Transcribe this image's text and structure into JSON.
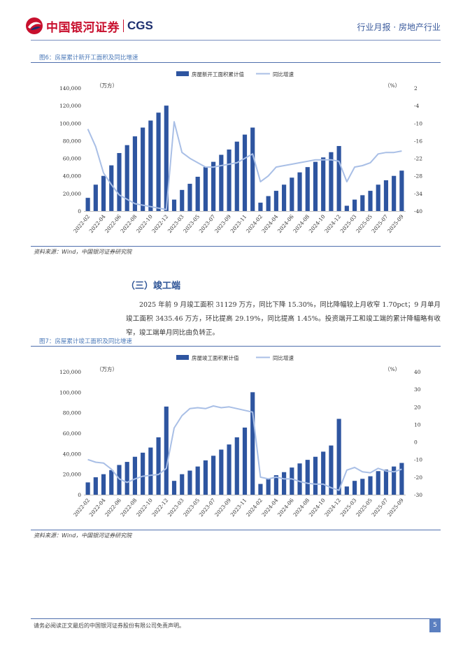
{
  "header": {
    "logo_cn": "中国银河证券",
    "logo_en": "CGS",
    "right_text": "行业月报 · 房地产行业"
  },
  "figures": [
    {
      "caption": "图6：房屋累计新开工面积及同比增速",
      "source": "资料来源：Wind，中国银河证券研究院"
    },
    {
      "caption": "图7：房屋累计竣工面积及同比增速",
      "source": "资料来源：Wind，中国银河证券研究院"
    }
  ],
  "section": {
    "title": "（三）竣工端",
    "paragraph": "2025 年前 9 月竣工面积 31129 万方，同比下降 15.30%，同比降幅较上月收窄 1.70pct；9 月单月竣工面积 3435.46 万方，环比提高 29.19%，同比提高 1.45%。投资端开工和竣工端的累计降幅略有收窄，竣工端单月同比由负转正。"
  },
  "footer": {
    "disclaimer": "请务必阅读正文最后的中国银河证券股份有限公司免责声明。",
    "page_number": "5"
  },
  "colors": {
    "bar": "#2e55a0",
    "line": "#a9bfe6",
    "accent": "#4a78b8"
  },
  "chart_data": [
    {
      "type": "bar+line",
      "title": "房屋累计新开工面积及同比增速",
      "legend": [
        "房屋新开工面积累计值",
        "同比增速"
      ],
      "left_unit": "（万方）",
      "right_unit": "（%）",
      "left_ticks": [
        "140,000",
        "120,000",
        "100,000",
        "80,000",
        "60,000",
        "40,000",
        "20,000",
        "0"
      ],
      "right_ticks": [
        "2",
        "-4",
        "-10",
        "-16",
        "-22",
        "-28",
        "-34",
        "-40"
      ],
      "ylim_left": [
        0,
        140000
      ],
      "ylim_right": [
        -40,
        2
      ],
      "x_tick_labels": [
        "2022-02",
        "2022-04",
        "2022-06",
        "2022-08",
        "2022-10",
        "2022-12",
        "2023-03",
        "2023-05",
        "2023-07",
        "2023-09",
        "2023-11",
        "2024-02",
        "2024-04",
        "2024-06",
        "2024-08",
        "2024-10",
        "2024-12",
        "2025-03",
        "2025-05",
        "2025-07",
        "2025-09"
      ],
      "categories": [
        "2022-02",
        "2022-03",
        "2022-04",
        "2022-05",
        "2022-06",
        "2022-07",
        "2022-08",
        "2022-09",
        "2022-10",
        "2022-11",
        "2022-12",
        "2023-02",
        "2023-03",
        "2023-04",
        "2023-05",
        "2023-06",
        "2023-07",
        "2023-08",
        "2023-09",
        "2023-10",
        "2023-11",
        "2023-12",
        "2024-02",
        "2024-03",
        "2024-04",
        "2024-05",
        "2024-06",
        "2024-07",
        "2024-08",
        "2024-09",
        "2024-10",
        "2024-11",
        "2024-12",
        "2025-02",
        "2025-03",
        "2025-04",
        "2025-05",
        "2025-06",
        "2025-07",
        "2025-08",
        "2025-09"
      ],
      "series": [
        {
          "name": "房屋新开工面积累计值",
          "kind": "bar",
          "axis": "left",
          "values": [
            15000,
            30000,
            40000,
            52000,
            66000,
            75000,
            85000,
            95000,
            103000,
            112000,
            120000,
            13000,
            24000,
            31000,
            39000,
            50000,
            56000,
            64000,
            70000,
            79000,
            87000,
            95000,
            9500,
            17000,
            23000,
            30000,
            38000,
            44000,
            50000,
            56000,
            61000,
            67000,
            74000,
            6000,
            13000,
            18000,
            23000,
            30000,
            35000,
            40000,
            46000
          ]
        },
        {
          "name": "同比增速",
          "kind": "line",
          "axis": "right",
          "values": [
            -12,
            -18,
            -27,
            -31,
            -34.5,
            -36,
            -37.5,
            -38,
            -38.5,
            -39,
            -39.5,
            -9.5,
            -20,
            -22,
            -23.5,
            -25,
            -25,
            -24.5,
            -24,
            -23.5,
            -22,
            -20.5,
            -30,
            -28,
            -25,
            -24.5,
            -24,
            -23.5,
            -23,
            -22.5,
            -22.5,
            -22.5,
            -23,
            -30,
            -25,
            -24.5,
            -23.5,
            -20.5,
            -20,
            -20,
            -19.5
          ]
        }
      ]
    },
    {
      "type": "bar+line",
      "title": "房屋累计竣工面积及同比增速",
      "legend": [
        "房屋竣工面积累计值",
        "同比增速"
      ],
      "left_unit": "（万方）",
      "right_unit": "（%）",
      "left_ticks": [
        "120,000",
        "100,000",
        "80,000",
        "60,000",
        "40,000",
        "20,000",
        "0"
      ],
      "right_ticks": [
        "40",
        "30",
        "20",
        "10",
        "0",
        "-10",
        "-20",
        "-30"
      ],
      "ylim_left": [
        0,
        120000
      ],
      "ylim_right": [
        -30,
        40
      ],
      "x_tick_labels": [
        "2022-02",
        "2022-04",
        "2022-06",
        "2022-08",
        "2022-10",
        "2022-12",
        "2023-03",
        "2023-05",
        "2023-07",
        "2023-09",
        "2023-11",
        "2024-02",
        "2024-04",
        "2024-06",
        "2024-08",
        "2024-10",
        "2024-12",
        "2025-03",
        "2025-05",
        "2025-07",
        "2025-09"
      ],
      "categories": [
        "2022-02",
        "2022-03",
        "2022-04",
        "2022-05",
        "2022-06",
        "2022-07",
        "2022-08",
        "2022-09",
        "2022-10",
        "2022-11",
        "2022-12",
        "2023-02",
        "2023-03",
        "2023-04",
        "2023-05",
        "2023-06",
        "2023-07",
        "2023-08",
        "2023-09",
        "2023-10",
        "2023-11",
        "2023-12",
        "2024-02",
        "2024-03",
        "2024-04",
        "2024-05",
        "2024-06",
        "2024-07",
        "2024-08",
        "2024-09",
        "2024-10",
        "2024-11",
        "2024-12",
        "2025-02",
        "2025-03",
        "2025-04",
        "2025-05",
        "2025-06",
        "2025-07",
        "2025-08",
        "2025-09"
      ],
      "series": [
        {
          "name": "房屋竣工面积累计值",
          "kind": "bar",
          "axis": "left",
          "values": [
            12000,
            17000,
            20000,
            24000,
            29000,
            32000,
            37000,
            41000,
            46000,
            56000,
            86000,
            13500,
            20000,
            23500,
            27500,
            33500,
            38000,
            44000,
            49000,
            56000,
            65500,
            100000,
            10500,
            15500,
            19000,
            22000,
            26500,
            30500,
            34000,
            37000,
            42000,
            48000,
            74000,
            8000,
            13500,
            15500,
            18000,
            23000,
            24500,
            27500,
            31000
          ]
        },
        {
          "name": "同比增速",
          "kind": "line",
          "axis": "right",
          "values": [
            -10,
            -11.5,
            -12,
            -15.5,
            -21,
            -23,
            -21,
            -19.5,
            -19,
            -18.5,
            -15,
            8,
            15,
            19,
            19.5,
            19,
            20.5,
            19.5,
            20,
            19,
            18,
            17,
            -20,
            -21,
            -20,
            -21,
            -21,
            -22.5,
            -23.5,
            -24,
            -24,
            -26,
            -27.5,
            -16,
            -14.5,
            -17,
            -17.5,
            -15,
            -16.5,
            -17,
            -15.5
          ]
        }
      ]
    }
  ]
}
